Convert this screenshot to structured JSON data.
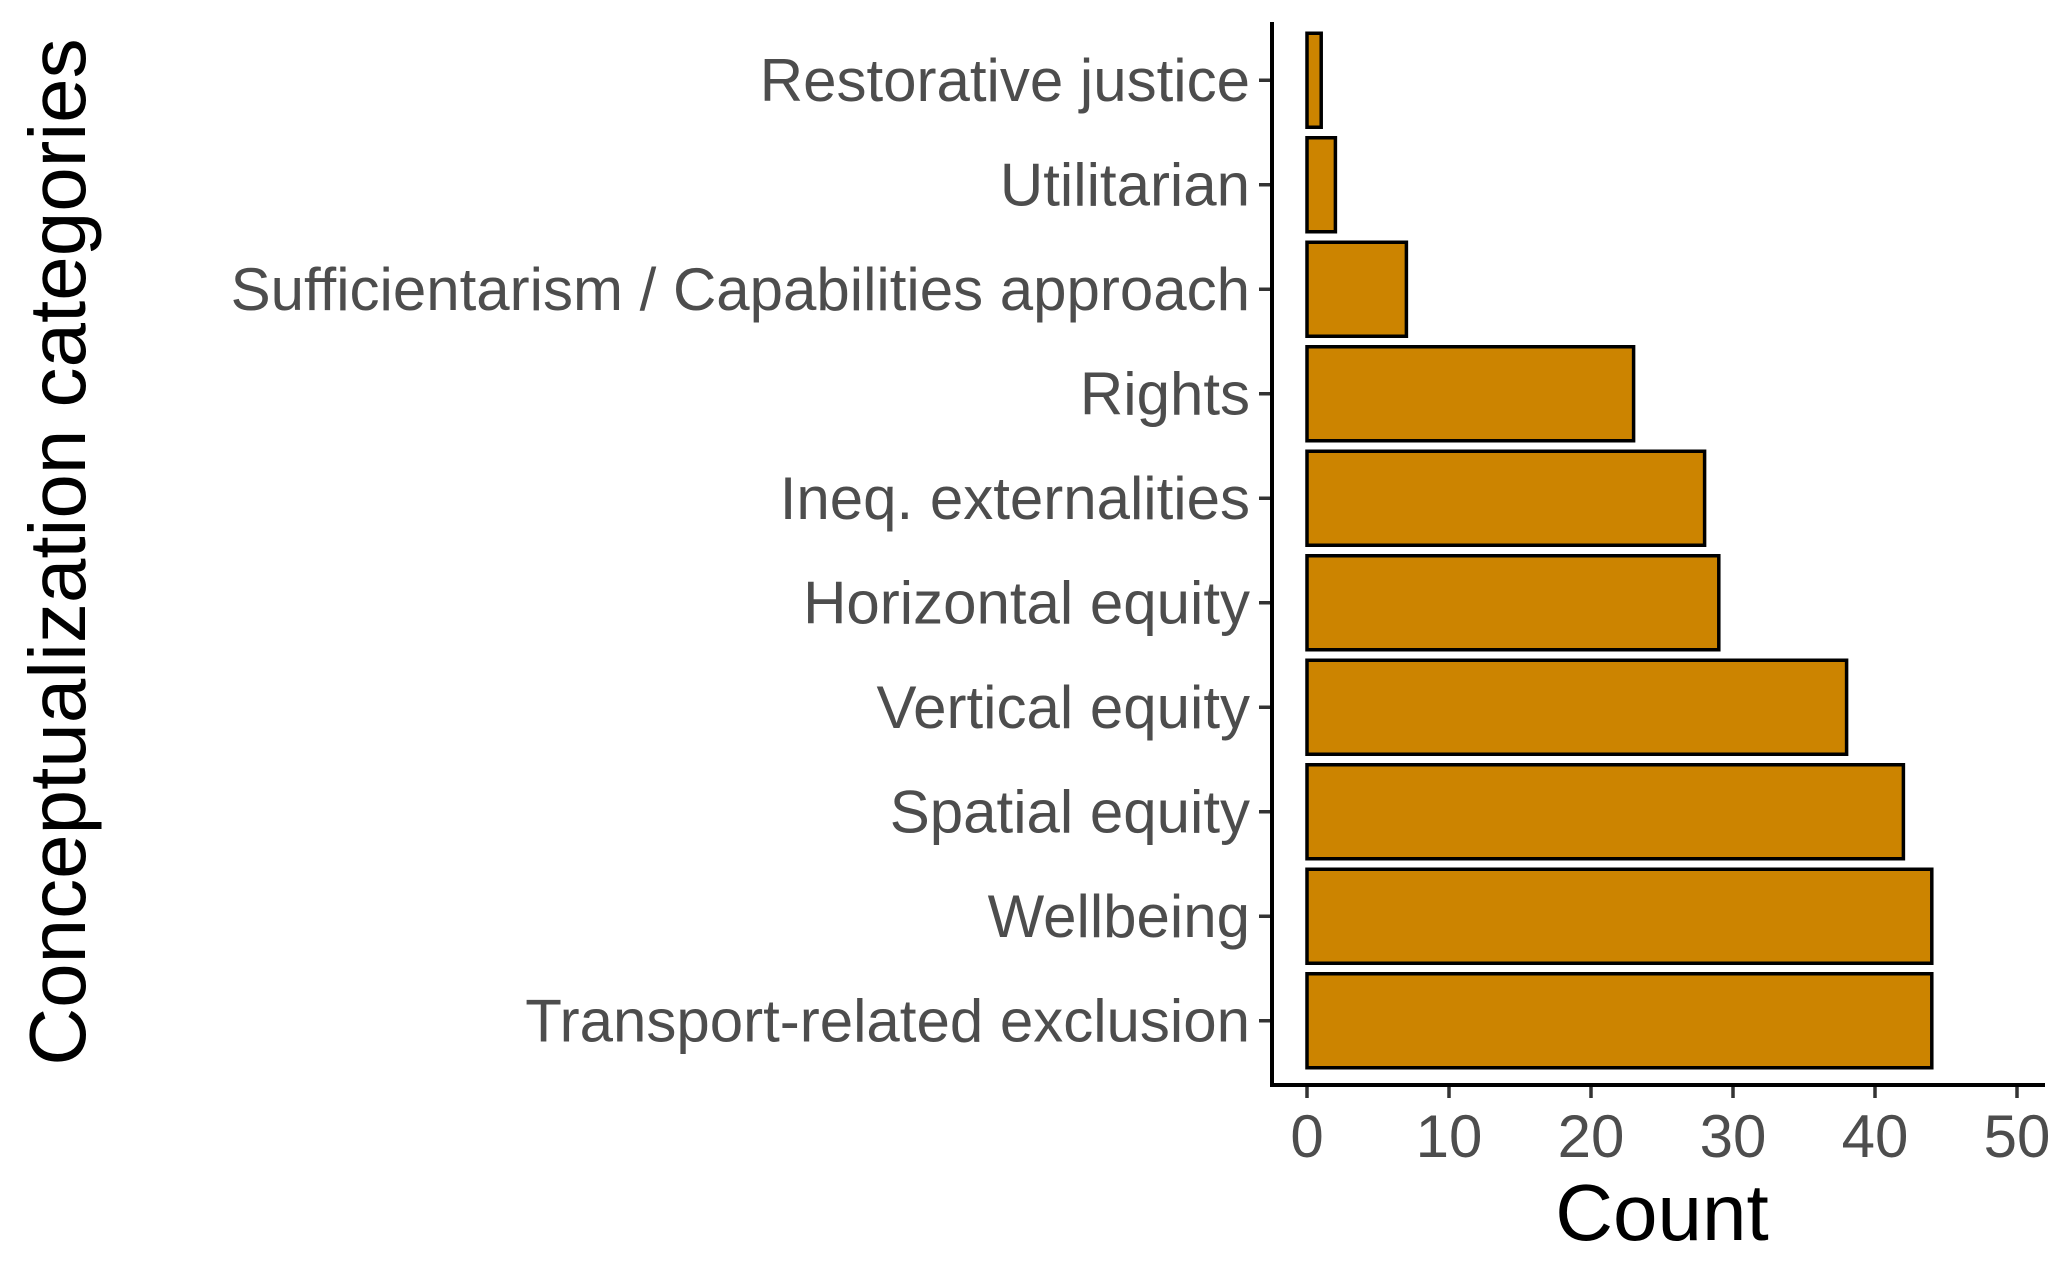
{
  "chart_data": {
    "type": "bar",
    "orientation": "horizontal",
    "categories": [
      "Restorative justice",
      "Utilitarian",
      "Sufficientarism / Capabilities approach",
      "Rights",
      "Ineq. externalities",
      "Horizontal equity",
      "Vertical equity",
      "Spatial equity",
      "Wellbeing",
      "Transport-related exclusion"
    ],
    "values": [
      1,
      2,
      7,
      23,
      28,
      29,
      38,
      42,
      44,
      44
    ],
    "xlabel": "Count",
    "ylabel": "Conceptualization categories",
    "xlim": [
      0,
      50
    ],
    "xticks": [
      "0",
      "10",
      "20",
      "30",
      "40",
      "50"
    ],
    "grid": false,
    "bar_color": "#CC8400",
    "bar_outline": "#000000"
  }
}
